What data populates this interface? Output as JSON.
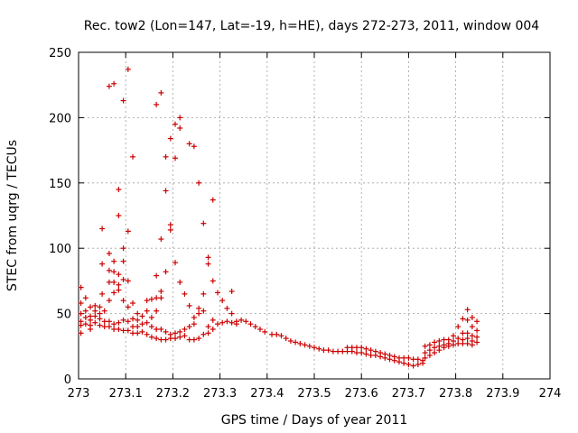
{
  "chart_data": {
    "type": "scatter",
    "title": "Rec. tow2 (Lon=147, Lat=-19, h=HE), days 272-273, 2011, window 004",
    "xlabel": "GPS time / Days of year 2011",
    "ylabel": "STEC from uqrg / TECUs",
    "xlim": [
      273,
      274
    ],
    "ylim": [
      0,
      250
    ],
    "xticks": [
      273,
      273.1,
      273.2,
      273.3,
      273.4,
      273.5,
      273.6,
      273.7,
      273.8,
      273.9,
      274
    ],
    "xtick_labels": [
      "273",
      "273.1",
      "273.2",
      "273.3",
      "273.4",
      "273.5",
      "273.6",
      "273.7",
      "273.8",
      "273.9",
      "274"
    ],
    "yticks": [
      0,
      50,
      100,
      150,
      200,
      250
    ],
    "ytick_labels": [
      "0",
      "50",
      "100",
      "150",
      "200",
      "250"
    ],
    "grid": true,
    "marker": "+",
    "color": "#cc0000",
    "series": [
      {
        "name": "STEC",
        "points": [
          [
            273.005,
            70
          ],
          [
            273.005,
            58
          ],
          [
            273.005,
            50
          ],
          [
            273.005,
            44
          ],
          [
            273.005,
            41
          ],
          [
            273.005,
            35
          ],
          [
            273.015,
            62
          ],
          [
            273.015,
            52
          ],
          [
            273.015,
            47
          ],
          [
            273.015,
            42
          ],
          [
            273.025,
            55
          ],
          [
            273.025,
            48
          ],
          [
            273.025,
            45
          ],
          [
            273.025,
            41
          ],
          [
            273.025,
            38
          ],
          [
            273.035,
            56
          ],
          [
            273.035,
            52
          ],
          [
            273.035,
            48
          ],
          [
            273.035,
            43
          ],
          [
            273.045,
            55
          ],
          [
            273.045,
            50
          ],
          [
            273.045,
            46
          ],
          [
            273.045,
            41
          ],
          [
            273.05,
            88
          ],
          [
            273.05,
            115
          ],
          [
            273.05,
            65
          ],
          [
            273.055,
            52
          ],
          [
            273.055,
            44
          ],
          [
            273.055,
            40
          ],
          [
            273.065,
            224
          ],
          [
            273.065,
            96
          ],
          [
            273.065,
            83
          ],
          [
            273.065,
            74
          ],
          [
            273.065,
            60
          ],
          [
            273.065,
            44
          ],
          [
            273.065,
            40
          ],
          [
            273.075,
            226
          ],
          [
            273.075,
            90
          ],
          [
            273.075,
            82
          ],
          [
            273.075,
            74
          ],
          [
            273.075,
            66
          ],
          [
            273.075,
            42
          ],
          [
            273.075,
            38
          ],
          [
            273.085,
            145
          ],
          [
            273.085,
            125
          ],
          [
            273.085,
            80
          ],
          [
            273.085,
            72
          ],
          [
            273.085,
            68
          ],
          [
            273.085,
            43
          ],
          [
            273.085,
            38
          ],
          [
            273.095,
            213
          ],
          [
            273.095,
            100
          ],
          [
            273.095,
            90
          ],
          [
            273.095,
            76
          ],
          [
            273.095,
            60
          ],
          [
            273.095,
            45
          ],
          [
            273.095,
            37
          ],
          [
            273.105,
            237
          ],
          [
            273.105,
            113
          ],
          [
            273.105,
            75
          ],
          [
            273.105,
            55
          ],
          [
            273.105,
            44
          ],
          [
            273.105,
            37
          ],
          [
            273.115,
            170
          ],
          [
            273.115,
            58
          ],
          [
            273.115,
            46
          ],
          [
            273.115,
            40
          ],
          [
            273.115,
            35
          ],
          [
            273.125,
            50
          ],
          [
            273.125,
            45
          ],
          [
            273.125,
            40
          ],
          [
            273.125,
            35
          ],
          [
            273.135,
            48
          ],
          [
            273.135,
            42
          ],
          [
            273.135,
            36
          ],
          [
            273.145,
            60
          ],
          [
            273.145,
            52
          ],
          [
            273.145,
            43
          ],
          [
            273.145,
            34
          ],
          [
            273.155,
            61
          ],
          [
            273.155,
            47
          ],
          [
            273.155,
            40
          ],
          [
            273.155,
            32
          ],
          [
            273.165,
            210
          ],
          [
            273.165,
            79
          ],
          [
            273.165,
            62
          ],
          [
            273.165,
            52
          ],
          [
            273.165,
            38
          ],
          [
            273.165,
            31
          ],
          [
            273.175,
            219
          ],
          [
            273.175,
            107
          ],
          [
            273.175,
            67
          ],
          [
            273.175,
            62
          ],
          [
            273.175,
            38
          ],
          [
            273.175,
            30
          ],
          [
            273.185,
            170
          ],
          [
            273.185,
            144
          ],
          [
            273.185,
            82
          ],
          [
            273.185,
            36
          ],
          [
            273.185,
            30
          ],
          [
            273.195,
            184
          ],
          [
            273.195,
            118
          ],
          [
            273.195,
            114
          ],
          [
            273.195,
            34
          ],
          [
            273.195,
            31
          ],
          [
            273.205,
            195
          ],
          [
            273.205,
            169
          ],
          [
            273.205,
            89
          ],
          [
            273.205,
            35
          ],
          [
            273.205,
            31
          ],
          [
            273.215,
            200
          ],
          [
            273.215,
            192
          ],
          [
            273.215,
            74
          ],
          [
            273.215,
            36
          ],
          [
            273.215,
            32
          ],
          [
            273.225,
            65
          ],
          [
            273.225,
            38
          ],
          [
            273.225,
            33
          ],
          [
            273.235,
            180
          ],
          [
            273.235,
            56
          ],
          [
            273.235,
            40
          ],
          [
            273.235,
            30
          ],
          [
            273.245,
            178
          ],
          [
            273.245,
            47
          ],
          [
            273.245,
            42
          ],
          [
            273.245,
            30
          ],
          [
            273.255,
            150
          ],
          [
            273.255,
            54
          ],
          [
            273.255,
            50
          ],
          [
            273.255,
            31
          ],
          [
            273.265,
            119
          ],
          [
            273.265,
            65
          ],
          [
            273.265,
            52
          ],
          [
            273.265,
            34
          ],
          [
            273.275,
            93
          ],
          [
            273.275,
            88
          ],
          [
            273.275,
            40
          ],
          [
            273.275,
            35
          ],
          [
            273.285,
            137
          ],
          [
            273.285,
            75
          ],
          [
            273.285,
            45
          ],
          [
            273.285,
            38
          ],
          [
            273.295,
            66
          ],
          [
            273.295,
            42
          ],
          [
            273.305,
            60
          ],
          [
            273.305,
            43
          ],
          [
            273.315,
            54
          ],
          [
            273.315,
            44
          ],
          [
            273.325,
            67
          ],
          [
            273.325,
            50
          ],
          [
            273.325,
            43
          ],
          [
            273.335,
            44
          ],
          [
            273.335,
            42
          ],
          [
            273.345,
            45
          ],
          [
            273.355,
            44
          ],
          [
            273.365,
            42
          ],
          [
            273.375,
            40
          ],
          [
            273.385,
            38
          ],
          [
            273.395,
            36
          ],
          [
            273.41,
            34
          ],
          [
            273.42,
            34
          ],
          [
            273.43,
            33
          ],
          [
            273.44,
            31
          ],
          [
            273.45,
            29
          ],
          [
            273.46,
            28
          ],
          [
            273.47,
            27
          ],
          [
            273.48,
            26
          ],
          [
            273.49,
            25
          ],
          [
            273.5,
            24
          ],
          [
            273.51,
            23
          ],
          [
            273.52,
            22
          ],
          [
            273.53,
            22
          ],
          [
            273.54,
            21
          ],
          [
            273.55,
            21
          ],
          [
            273.56,
            21
          ],
          [
            273.57,
            24
          ],
          [
            273.57,
            21
          ],
          [
            273.58,
            24
          ],
          [
            273.58,
            21
          ],
          [
            273.59,
            24
          ],
          [
            273.59,
            20
          ],
          [
            273.6,
            24
          ],
          [
            273.6,
            20
          ],
          [
            273.61,
            23
          ],
          [
            273.61,
            19
          ],
          [
            273.62,
            22
          ],
          [
            273.62,
            18
          ],
          [
            273.63,
            21
          ],
          [
            273.63,
            18
          ],
          [
            273.64,
            20
          ],
          [
            273.64,
            17
          ],
          [
            273.65,
            19
          ],
          [
            273.65,
            16
          ],
          [
            273.66,
            18
          ],
          [
            273.66,
            15
          ],
          [
            273.67,
            17
          ],
          [
            273.67,
            14
          ],
          [
            273.68,
            16
          ],
          [
            273.68,
            13
          ],
          [
            273.69,
            16
          ],
          [
            273.69,
            12
          ],
          [
            273.7,
            16
          ],
          [
            273.7,
            11
          ],
          [
            273.71,
            15
          ],
          [
            273.71,
            10
          ],
          [
            273.72,
            15
          ],
          [
            273.72,
            11
          ],
          [
            273.73,
            14
          ],
          [
            273.73,
            12
          ],
          [
            273.735,
            25
          ],
          [
            273.735,
            20
          ],
          [
            273.735,
            16
          ],
          [
            273.745,
            26
          ],
          [
            273.745,
            22
          ],
          [
            273.745,
            18
          ],
          [
            273.755,
            28
          ],
          [
            273.755,
            24
          ],
          [
            273.755,
            20
          ],
          [
            273.765,
            29
          ],
          [
            273.765,
            25
          ],
          [
            273.765,
            22
          ],
          [
            273.775,
            30
          ],
          [
            273.775,
            26
          ],
          [
            273.775,
            24
          ],
          [
            273.785,
            30
          ],
          [
            273.785,
            27
          ],
          [
            273.785,
            25
          ],
          [
            273.795,
            33
          ],
          [
            273.795,
            29
          ],
          [
            273.795,
            26
          ],
          [
            273.805,
            40
          ],
          [
            273.805,
            31
          ],
          [
            273.805,
            27
          ],
          [
            273.815,
            46
          ],
          [
            273.815,
            35
          ],
          [
            273.815,
            30
          ],
          [
            273.815,
            27
          ],
          [
            273.825,
            53
          ],
          [
            273.825,
            45
          ],
          [
            273.825,
            35
          ],
          [
            273.825,
            31
          ],
          [
            273.825,
            27
          ],
          [
            273.835,
            47
          ],
          [
            273.835,
            40
          ],
          [
            273.835,
            33
          ],
          [
            273.835,
            29
          ],
          [
            273.835,
            26
          ],
          [
            273.845,
            44
          ],
          [
            273.845,
            37
          ],
          [
            273.845,
            32
          ],
          [
            273.845,
            28
          ]
        ]
      }
    ]
  }
}
